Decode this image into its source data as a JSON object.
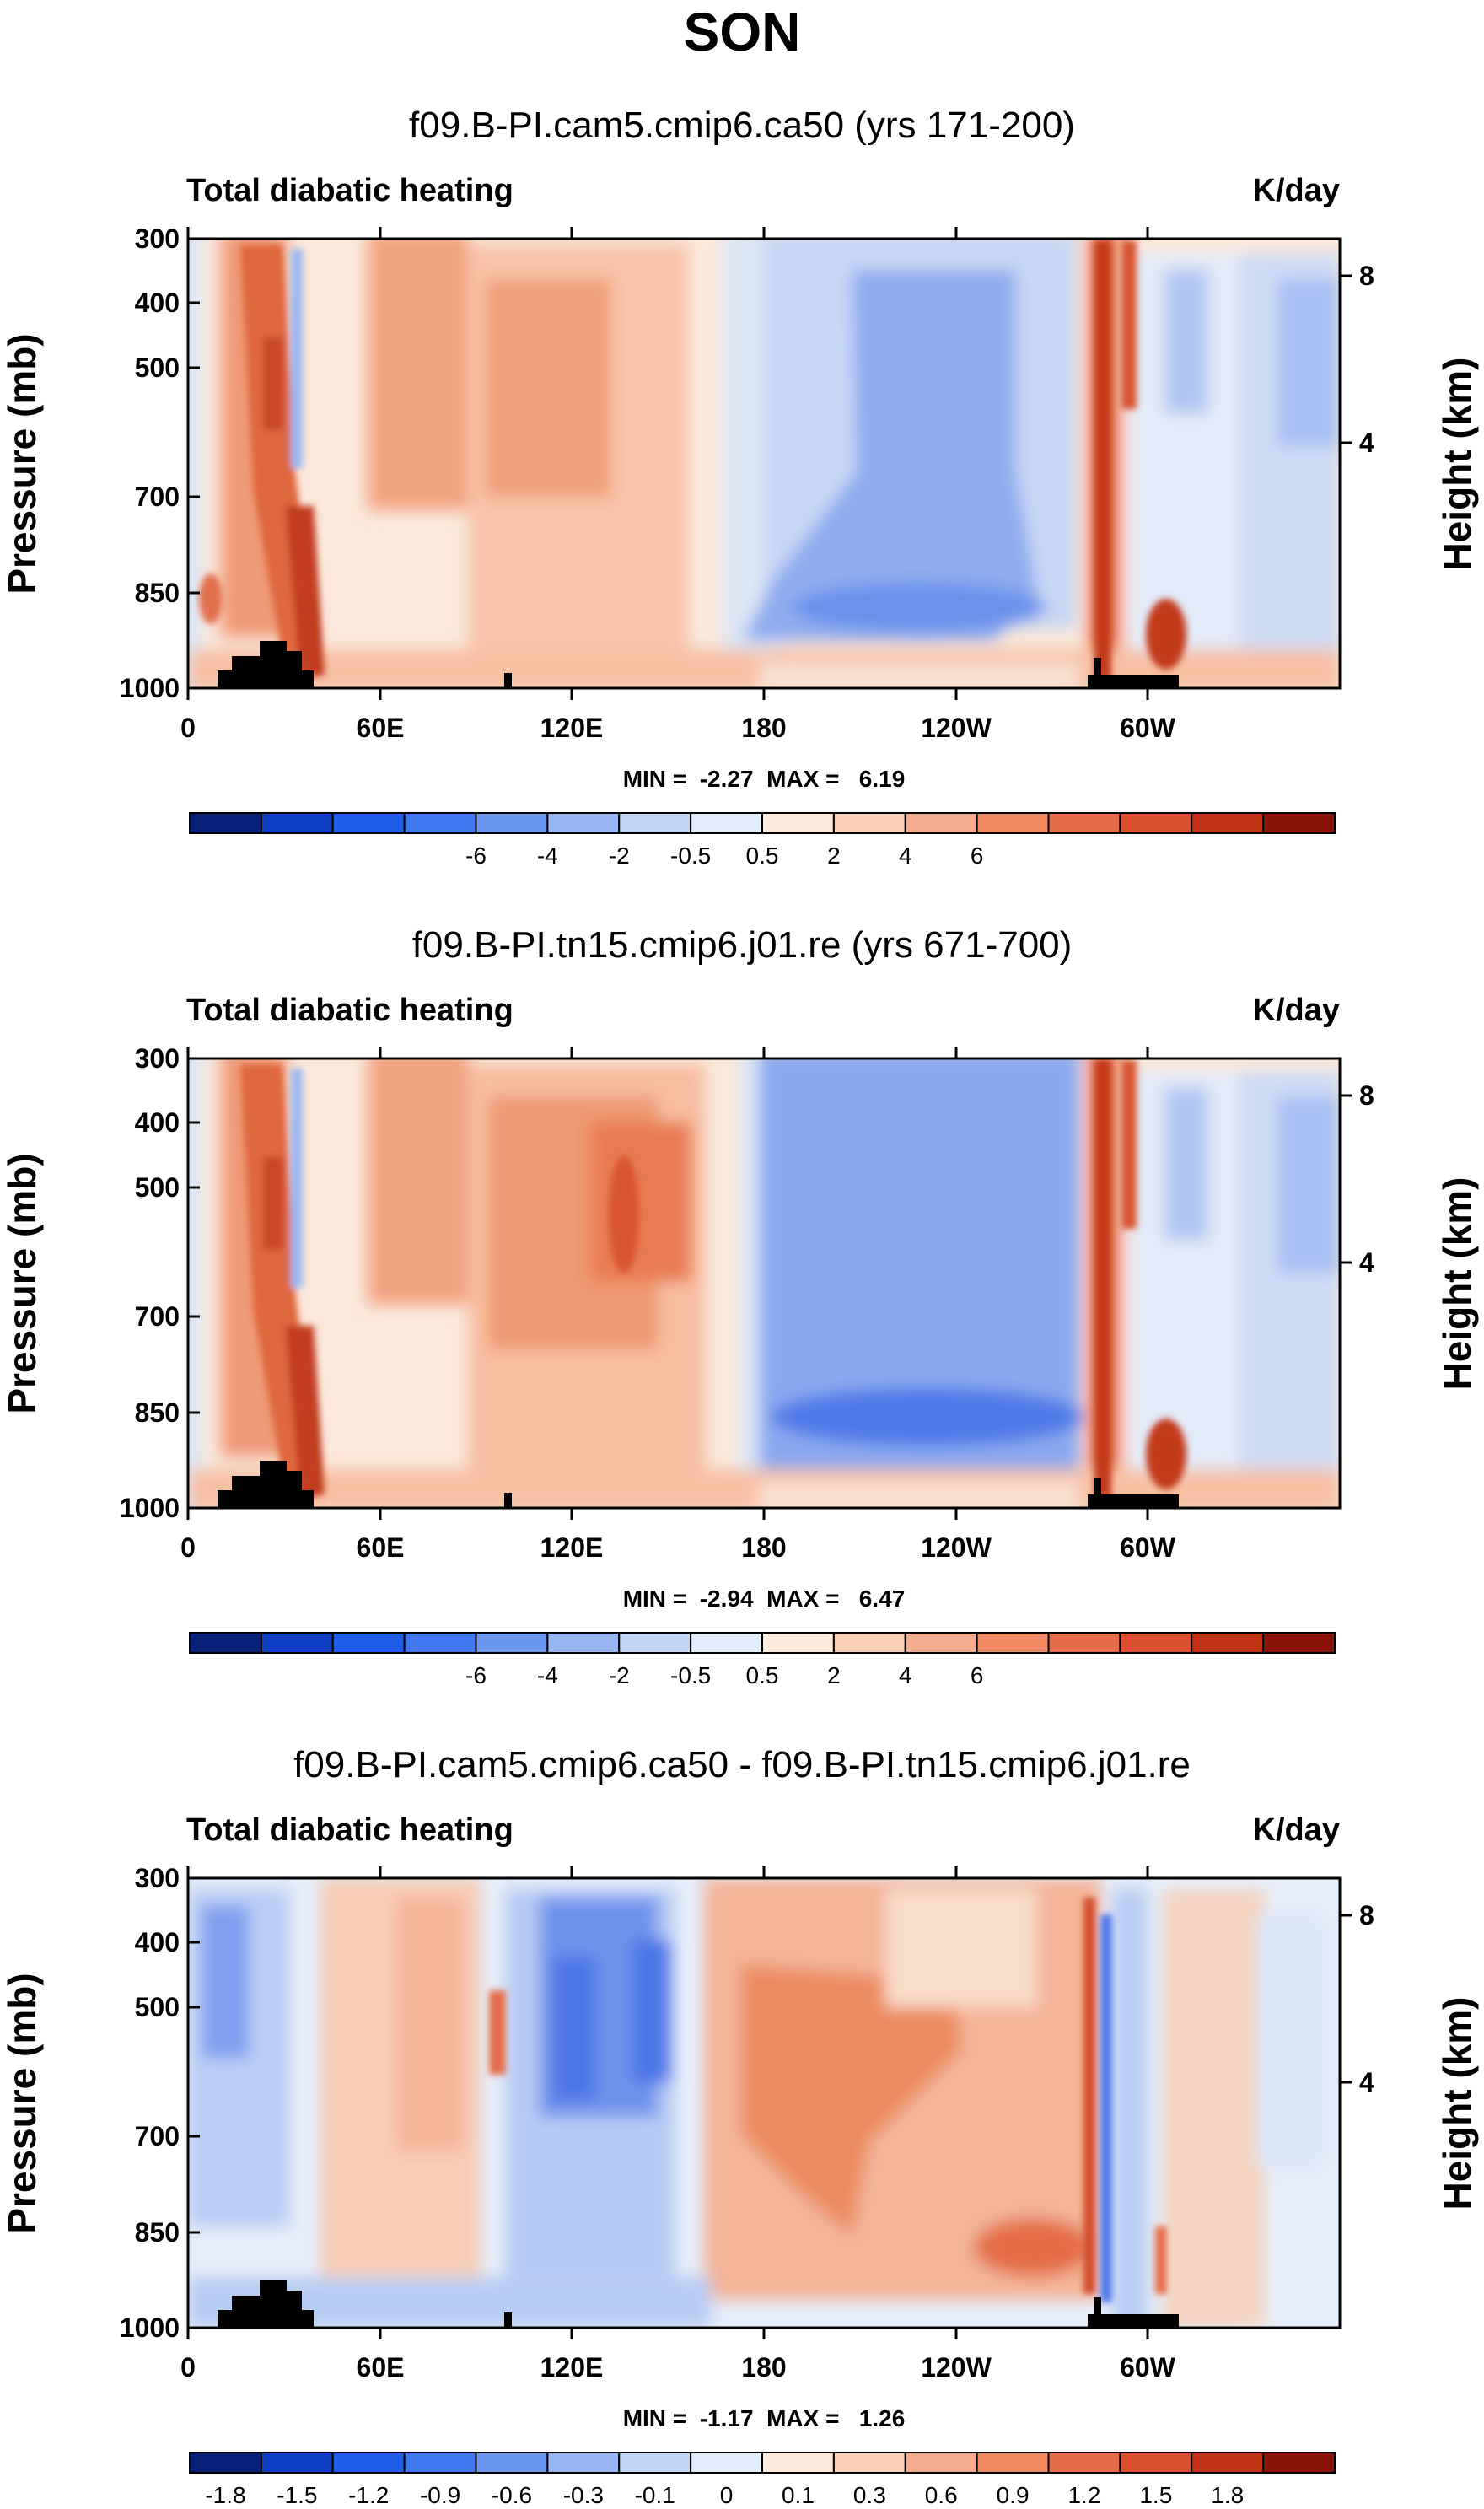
{
  "figure_title": "SON",
  "panels": [
    {
      "title": "f09.B-PI.cam5.cmip6.ca50 (yrs 171-200)",
      "left_label": "Total diabatic heating",
      "right_label": "K/day",
      "y_axis_label": "Pressure (mb)",
      "y2_axis_label": "Height (km)",
      "stats": "MIN =  -2.27  MAX =   6.19"
    },
    {
      "title": "f09.B-PI.tn15.cmip6.j01.re (yrs 671-700)",
      "left_label": "Total diabatic heating",
      "right_label": "K/day",
      "y_axis_label": "Pressure (mb)",
      "y2_axis_label": "Height (km)",
      "stats": "MIN =  -2.94  MAX =   6.47"
    },
    {
      "title": "f09.B-PI.cam5.cmip6.ca50 - f09.B-PI.tn15.cmip6.j01.re",
      "left_label": "Total diabatic heating",
      "right_label": "K/day",
      "y_axis_label": "Pressure (mb)",
      "y2_axis_label": "Height (km)",
      "stats": "MIN =  -1.17  MAX =   1.26"
    }
  ],
  "chart_data": [
    {
      "type": "heatmap",
      "title": "f09.B-PI.cam5.cmip6.ca50 (yrs 171-200)",
      "xlabel": "",
      "ylabel": "Pressure (mb)",
      "y2label": "Height (km)",
      "x_ticks": [
        "0",
        "60E",
        "120E",
        "180",
        "120W",
        "60W"
      ],
      "y_ticks": [
        "300",
        "400",
        "500",
        "700",
        "850",
        "1000"
      ],
      "y2_ticks": [
        "8",
        "4"
      ],
      "colorbar": {
        "labels": [
          "-6",
          "-4",
          "-2",
          "-0.5",
          "0.5",
          "2",
          "4",
          "6"
        ],
        "colors": [
          "#08207a",
          "#0f3fc4",
          "#1f5de8",
          "#3f78ee",
          "#6b97f0",
          "#97b6f3",
          "#c1d4f7",
          "#e3ecfa",
          "#fcebdc",
          "#f8d0b6",
          "#f4ad8c",
          "#ef8a62",
          "#e56e4a",
          "#d8502d",
          "#bf3416",
          "#8b1208"
        ]
      },
      "min": -2.27,
      "max": 6.19,
      "units": "K/day"
    },
    {
      "type": "heatmap",
      "title": "f09.B-PI.tn15.cmip6.j01.re (yrs 671-700)",
      "xlabel": "",
      "ylabel": "Pressure (mb)",
      "y2label": "Height (km)",
      "x_ticks": [
        "0",
        "60E",
        "120E",
        "180",
        "120W",
        "60W"
      ],
      "y_ticks": [
        "300",
        "400",
        "500",
        "700",
        "850",
        "1000"
      ],
      "y2_ticks": [
        "8",
        "4"
      ],
      "colorbar": {
        "labels": [
          "-6",
          "-4",
          "-2",
          "-0.5",
          "0.5",
          "2",
          "4",
          "6"
        ],
        "colors": [
          "#08207a",
          "#0f3fc4",
          "#1f5de8",
          "#3f78ee",
          "#6b97f0",
          "#97b6f3",
          "#c1d4f7",
          "#e3ecfa",
          "#fcebdc",
          "#f8d0b6",
          "#f4ad8c",
          "#ef8a62",
          "#e56e4a",
          "#d8502d",
          "#bf3416",
          "#8b1208"
        ]
      },
      "min": -2.94,
      "max": 6.47,
      "units": "K/day"
    },
    {
      "type": "heatmap",
      "title": "f09.B-PI.cam5.cmip6.ca50 - f09.B-PI.tn15.cmip6.j01.re",
      "xlabel": "",
      "ylabel": "Pressure (mb)",
      "y2label": "Height (km)",
      "x_ticks": [
        "0",
        "60E",
        "120E",
        "180",
        "120W",
        "60W"
      ],
      "y_ticks": [
        "300",
        "400",
        "500",
        "700",
        "850",
        "1000"
      ],
      "y2_ticks": [
        "8",
        "4"
      ],
      "colorbar": {
        "labels": [
          "-1.8",
          "-1.5",
          "-1.2",
          "-0.9",
          "-0.6",
          "-0.3",
          "-0.1",
          "0",
          "0.1",
          "0.3",
          "0.6",
          "0.9",
          "1.2",
          "1.5",
          "1.8"
        ],
        "colors": [
          "#08207a",
          "#0f3fc4",
          "#1f5de8",
          "#3f78ee",
          "#6b97f0",
          "#97b6f3",
          "#c1d4f7",
          "#e3ecfa",
          "#fcebdc",
          "#f8d0b6",
          "#f4ad8c",
          "#ef8a62",
          "#e56e4a",
          "#d8502d",
          "#bf3416",
          "#8b1208"
        ]
      },
      "min": -1.17,
      "max": 1.26,
      "units": "K/day"
    }
  ]
}
